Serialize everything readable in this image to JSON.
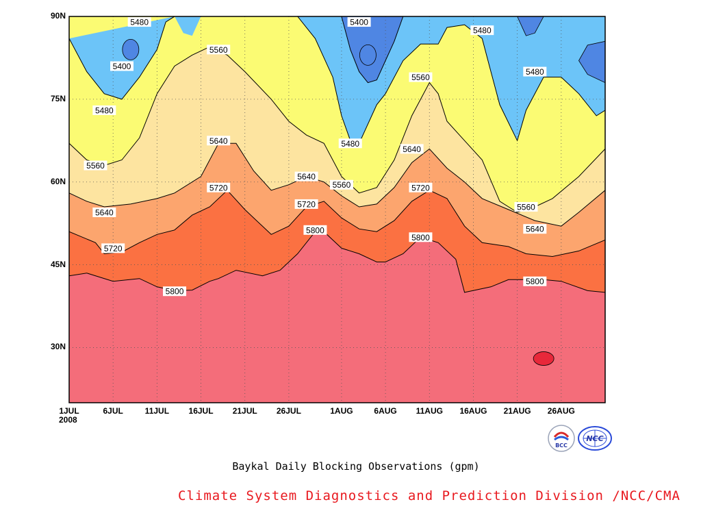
{
  "chart_data": {
    "type": "contour",
    "title": "Baykal Daily Blocking Observations (gpm)",
    "credit": "Climate System Diagnostics and Prediction Division /NCC/CMA",
    "x_axis": {
      "type": "date",
      "range": [
        "2008-07-01",
        "2008-08-31"
      ],
      "ticks": [
        {
          "date": "2008-07-01",
          "label": "1JUL"
        },
        {
          "date": "2008-07-06",
          "label": "6JUL"
        },
        {
          "date": "2008-07-11",
          "label": "11JUL"
        },
        {
          "date": "2008-07-16",
          "label": "16JUL"
        },
        {
          "date": "2008-07-21",
          "label": "21JUL"
        },
        {
          "date": "2008-07-26",
          "label": "26JUL"
        },
        {
          "date": "2008-08-01",
          "label": "1AUG"
        },
        {
          "date": "2008-08-06",
          "label": "6AUG"
        },
        {
          "date": "2008-08-11",
          "label": "11AUG"
        },
        {
          "date": "2008-08-16",
          "label": "16AUG"
        },
        {
          "date": "2008-08-21",
          "label": "21AUG"
        },
        {
          "date": "2008-08-26",
          "label": "26AUG"
        }
      ],
      "year_label": "2008"
    },
    "y_axis": {
      "range": [
        20,
        90
      ],
      "ticks": [
        {
          "value": 30,
          "label": "30N"
        },
        {
          "value": 45,
          "label": "45N"
        },
        {
          "value": 60,
          "label": "60N"
        },
        {
          "value": 75,
          "label": "75N"
        },
        {
          "value": 90,
          "label": "90N"
        }
      ]
    },
    "grid": "dotted",
    "contour_levels": [
      5400,
      5480,
      5560,
      5640,
      5720,
      5800,
      5880
    ],
    "fill_colors": {
      "below_5400": "#4f86e3",
      "5400_5480": "#6cc4f8",
      "5480_5560": "#fbfb73",
      "5560_5640": "#fde4a0",
      "5640_5720": "#fca56e",
      "5720_5800": "#fb7142",
      "5800_5880": "#f46d7a",
      "above_5880": "#e8283a"
    },
    "contour_lines": [
      {
        "level": 5800,
        "points": [
          [
            "2008-07-01",
            43
          ],
          [
            "2008-07-03",
            43.5
          ],
          [
            "2008-07-06",
            42
          ],
          [
            "2008-07-09",
            42.5
          ],
          [
            "2008-07-11",
            41
          ],
          [
            "2008-07-13",
            40.3
          ],
          [
            "2008-07-15",
            40.4
          ],
          [
            "2008-07-17",
            42
          ],
          [
            "2008-07-18",
            42.5
          ],
          [
            "2008-07-20",
            44
          ],
          [
            "2008-07-23",
            43
          ],
          [
            "2008-07-25",
            44
          ],
          [
            "2008-07-27",
            47
          ],
          [
            "2008-07-29",
            51
          ],
          [
            "2008-07-30",
            51
          ],
          [
            "2008-08-01",
            48
          ],
          [
            "2008-08-03",
            47
          ],
          [
            "2008-08-05",
            45.5
          ],
          [
            "2008-08-06",
            45.5
          ],
          [
            "2008-08-08",
            47
          ],
          [
            "2008-08-10",
            50
          ],
          [
            "2008-08-12",
            49
          ],
          [
            "2008-08-14",
            46
          ],
          [
            "2008-08-15",
            40
          ],
          [
            "2008-08-18",
            41
          ],
          [
            "2008-08-20",
            42.3
          ],
          [
            "2008-08-24",
            42.3
          ],
          [
            "2008-08-26",
            42
          ],
          [
            "2008-08-29",
            40.3
          ],
          [
            "2008-08-31",
            40
          ]
        ]
      },
      {
        "level": 5720,
        "points": [
          [
            "2008-07-01",
            51
          ],
          [
            "2008-07-04",
            49
          ],
          [
            "2008-07-05",
            47
          ],
          [
            "2008-07-07",
            47.3
          ],
          [
            "2008-07-09",
            49
          ],
          [
            "2008-07-11",
            50.5
          ],
          [
            "2008-07-13",
            51.3
          ],
          [
            "2008-07-15",
            54
          ],
          [
            "2008-07-17",
            55.5
          ],
          [
            "2008-07-19",
            58.5
          ],
          [
            "2008-07-21",
            55
          ],
          [
            "2008-07-24",
            50.5
          ],
          [
            "2008-07-26",
            52
          ],
          [
            "2008-07-28",
            55.5
          ],
          [
            "2008-07-30",
            56.5
          ],
          [
            "2008-08-01",
            53.5
          ],
          [
            "2008-08-03",
            51.5
          ],
          [
            "2008-08-05",
            51
          ],
          [
            "2008-08-07",
            53
          ],
          [
            "2008-08-09",
            56.5
          ],
          [
            "2008-08-11",
            58.5
          ],
          [
            "2008-08-13",
            57
          ],
          [
            "2008-08-15",
            52
          ],
          [
            "2008-08-17",
            49
          ],
          [
            "2008-08-20",
            48.3
          ],
          [
            "2008-08-22",
            47
          ],
          [
            "2008-08-25",
            46.5
          ],
          [
            "2008-08-28",
            47.5
          ],
          [
            "2008-08-31",
            49.5
          ]
        ]
      },
      {
        "level": 5640,
        "points": [
          [
            "2008-07-01",
            58
          ],
          [
            "2008-07-03",
            56.5
          ],
          [
            "2008-07-05",
            55.5
          ],
          [
            "2008-07-08",
            56
          ],
          [
            "2008-07-11",
            57
          ],
          [
            "2008-07-13",
            58
          ],
          [
            "2008-07-16",
            61
          ],
          [
            "2008-07-18",
            67
          ],
          [
            "2008-07-20",
            67
          ],
          [
            "2008-07-22",
            62
          ],
          [
            "2008-07-24",
            58.5
          ],
          [
            "2008-07-26",
            59.5
          ],
          [
            "2008-07-28",
            61
          ],
          [
            "2008-07-30",
            60
          ],
          [
            "2008-08-01",
            57.5
          ],
          [
            "2008-08-03",
            55.5
          ],
          [
            "2008-08-05",
            56
          ],
          [
            "2008-08-07",
            59
          ],
          [
            "2008-08-09",
            63.5
          ],
          [
            "2008-08-11",
            66
          ],
          [
            "2008-08-13",
            62.5
          ],
          [
            "2008-08-15",
            60
          ],
          [
            "2008-08-17",
            57
          ],
          [
            "2008-08-20",
            55
          ],
          [
            "2008-08-23",
            53
          ],
          [
            "2008-08-26",
            52
          ],
          [
            "2008-08-28",
            54.5
          ],
          [
            "2008-08-31",
            58.5
          ]
        ]
      },
      {
        "level": 5560,
        "points": [
          [
            "2008-07-01",
            67
          ],
          [
            "2008-07-03",
            64
          ],
          [
            "2008-07-05",
            63
          ],
          [
            "2008-07-07",
            64
          ],
          [
            "2008-07-09",
            68
          ],
          [
            "2008-07-11",
            76
          ],
          [
            "2008-07-13",
            81
          ],
          [
            "2008-07-15",
            83
          ],
          [
            "2008-07-17",
            84.5
          ],
          [
            "2008-07-19",
            83
          ],
          [
            "2008-07-21",
            80
          ],
          [
            "2008-07-24",
            75
          ],
          [
            "2008-07-26",
            71
          ],
          [
            "2008-07-28",
            68.5
          ],
          [
            "2008-07-30",
            67
          ],
          [
            "2008-08-01",
            61
          ],
          [
            "2008-08-03",
            58
          ],
          [
            "2008-08-05",
            59
          ],
          [
            "2008-08-07",
            64
          ],
          [
            "2008-08-09",
            72
          ],
          [
            "2008-08-11",
            78
          ],
          [
            "2008-08-12",
            76
          ],
          [
            "2008-08-13",
            71
          ],
          [
            "2008-08-15",
            67.5
          ],
          [
            "2008-08-17",
            64
          ],
          [
            "2008-08-19",
            56.5
          ],
          [
            "2008-08-21",
            54.5
          ],
          [
            "2008-08-23",
            55.5
          ],
          [
            "2008-08-25",
            57
          ],
          [
            "2008-08-28",
            61
          ],
          [
            "2008-08-31",
            66
          ]
        ]
      },
      {
        "level": 5480,
        "points": [
          [
            "2008-07-01",
            86
          ],
          [
            "2008-07-03",
            80
          ],
          [
            "2008-07-05",
            76
          ],
          [
            "2008-07-07",
            75
          ],
          [
            "2008-07-09",
            79
          ],
          [
            "2008-07-11",
            84
          ],
          [
            "2008-07-12",
            89
          ],
          [
            "2008-07-13",
            90
          ]
        ]
      },
      {
        "level": 5480,
        "points": [
          [
            "2008-07-27",
            90
          ],
          [
            "2008-07-29",
            86
          ],
          [
            "2008-07-31",
            79
          ],
          [
            "2008-08-01",
            72
          ],
          [
            "2008-08-02",
            67.5
          ],
          [
            "2008-08-03",
            67
          ],
          [
            "2008-08-05",
            74
          ],
          [
            "2008-08-06",
            76
          ],
          [
            "2008-08-08",
            82
          ],
          [
            "2008-08-10",
            85
          ],
          [
            "2008-08-12",
            85
          ],
          [
            "2008-08-13",
            88
          ],
          [
            "2008-08-15",
            88.5
          ],
          [
            "2008-08-17",
            86
          ],
          [
            "2008-08-18",
            80
          ],
          [
            "2008-08-19",
            74
          ],
          [
            "2008-08-21",
            67.5
          ],
          [
            "2008-08-22",
            73
          ],
          [
            "2008-08-24",
            79
          ],
          [
            "2008-08-26",
            79
          ],
          [
            "2008-08-28",
            76
          ],
          [
            "2008-08-30",
            72
          ],
          [
            "2008-08-31",
            73
          ]
        ]
      },
      {
        "level": 5400,
        "points": [
          [
            "2008-08-01",
            90
          ],
          [
            "2008-08-02",
            84
          ],
          [
            "2008-08-03",
            80
          ],
          [
            "2008-08-04",
            78
          ],
          [
            "2008-08-05",
            78.5
          ],
          [
            "2008-08-06",
            82
          ],
          [
            "2008-08-07",
            85.5
          ],
          [
            "2008-08-08",
            90
          ]
        ]
      }
    ],
    "closed_regions": [
      {
        "level": 5400,
        "type": "low",
        "center": [
          "2008-07-08",
          84
        ]
      },
      {
        "level": 5400,
        "type": "low",
        "center": [
          "2008-08-04",
          83
        ]
      },
      {
        "level": 5880,
        "type": "high",
        "center": [
          "2008-08-24",
          28
        ]
      }
    ],
    "contour_labels": [
      {
        "text": "5480",
        "at": [
          "2008-07-09",
          89
        ]
      },
      {
        "text": "5400",
        "at": [
          "2008-07-07",
          81
        ]
      },
      {
        "text": "5480",
        "at": [
          "2008-07-05",
          73
        ]
      },
      {
        "text": "5560",
        "at": [
          "2008-07-04",
          63
        ]
      },
      {
        "text": "5640",
        "at": [
          "2008-07-05",
          54.5
        ]
      },
      {
        "text": "5720",
        "at": [
          "2008-07-06",
          48
        ]
      },
      {
        "text": "5800",
        "at": [
          "2008-07-13",
          40.2
        ]
      },
      {
        "text": "5560",
        "at": [
          "2008-07-18",
          84
        ]
      },
      {
        "text": "5640",
        "at": [
          "2008-07-18",
          67.5
        ]
      },
      {
        "text": "5720",
        "at": [
          "2008-07-18",
          59
        ]
      },
      {
        "text": "5640",
        "at": [
          "2008-07-28",
          61
        ]
      },
      {
        "text": "5720",
        "at": [
          "2008-07-28",
          56
        ]
      },
      {
        "text": "5800",
        "at": [
          "2008-07-29",
          51.3
        ]
      },
      {
        "text": "5400",
        "at": [
          "2008-08-03",
          89
        ]
      },
      {
        "text": "5480",
        "at": [
          "2008-08-02",
          67
        ]
      },
      {
        "text": "5560",
        "at": [
          "2008-08-01",
          59.5
        ]
      },
      {
        "text": "5560",
        "at": [
          "2008-08-10",
          79
        ]
      },
      {
        "text": "5640",
        "at": [
          "2008-08-09",
          66
        ]
      },
      {
        "text": "5720",
        "at": [
          "2008-08-10",
          59
        ]
      },
      {
        "text": "5800",
        "at": [
          "2008-08-10",
          50
        ]
      },
      {
        "text": "5480",
        "at": [
          "2008-08-17",
          87.5
        ]
      },
      {
        "text": "5480",
        "at": [
          "2008-08-23",
          80
        ]
      },
      {
        "text": "5560",
        "at": [
          "2008-08-22",
          55.5
        ]
      },
      {
        "text": "5640",
        "at": [
          "2008-08-23",
          51.5
        ]
      },
      {
        "text": "5800",
        "at": [
          "2008-08-23",
          42
        ]
      }
    ]
  },
  "logos": {
    "left": {
      "text": "BCC",
      "icon": "bcc-logo-icon"
    },
    "right": {
      "text": "NCC",
      "icon": "ncc-logo-icon"
    }
  }
}
